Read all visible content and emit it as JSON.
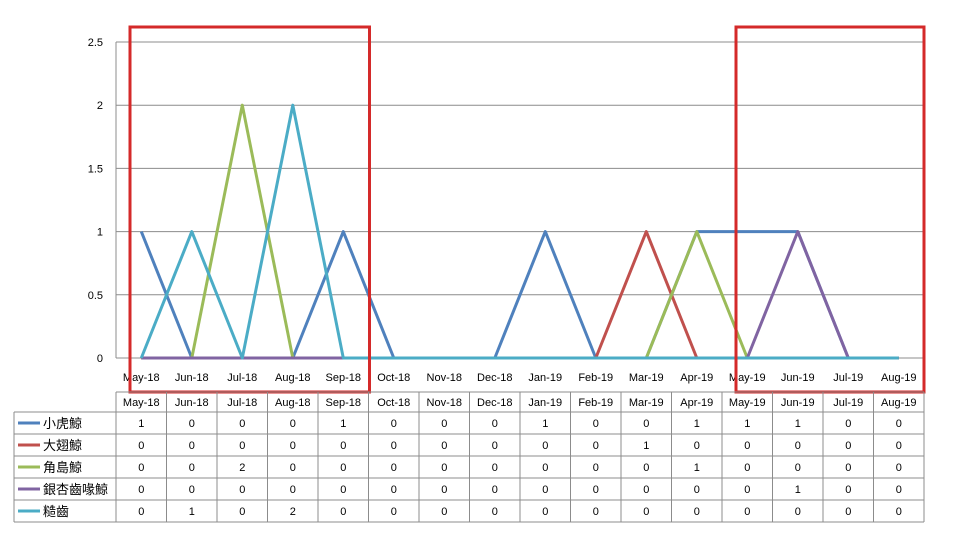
{
  "chart_data": {
    "type": "line",
    "categories": [
      "May-18",
      "Jun-18",
      "Jul-18",
      "Aug-18",
      "Sep-18",
      "Oct-18",
      "Nov-18",
      "Dec-18",
      "Jan-19",
      "Feb-19",
      "Mar-19",
      "Apr-19",
      "May-19",
      "Jun-19",
      "Jul-19",
      "Aug-19"
    ],
    "yticks": [
      "0",
      "0.5",
      "1",
      "1.5",
      "2",
      "2.5"
    ],
    "ylim": [
      0,
      2.5
    ],
    "grid": true,
    "legend_position": "bottom-left (data table)",
    "series": [
      {
        "name": "小虎鯨",
        "color": "#4F81BD",
        "values": [
          1,
          0,
          0,
          0,
          1,
          0,
          0,
          0,
          1,
          0,
          0,
          1,
          1,
          1,
          0,
          0
        ]
      },
      {
        "name": "大翅鯨",
        "color": "#C0504D",
        "values": [
          0,
          0,
          0,
          0,
          0,
          0,
          0,
          0,
          0,
          0,
          1,
          0,
          0,
          0,
          0,
          0
        ]
      },
      {
        "name": "角島鯨",
        "color": "#9BBB59",
        "values": [
          0,
          0,
          2,
          0,
          0,
          0,
          0,
          0,
          0,
          0,
          0,
          1,
          0,
          0,
          0,
          0
        ]
      },
      {
        "name": "銀杏齒喙鯨",
        "color": "#8064A2",
        "values": [
          0,
          0,
          0,
          0,
          0,
          0,
          0,
          0,
          0,
          0,
          0,
          0,
          0,
          1,
          0,
          0
        ]
      },
      {
        "name": "糙齒",
        "color": "#4BACC6",
        "values": [
          0,
          1,
          0,
          2,
          0,
          0,
          0,
          0,
          0,
          0,
          0,
          0,
          0,
          0,
          0,
          0
        ]
      }
    ],
    "highlight_boxes": [
      {
        "from": "May-18",
        "to": "Sep-18",
        "color": "#D42A2A"
      },
      {
        "from": "May-19",
        "to": "Aug-19",
        "color": "#D42A2A"
      }
    ]
  }
}
